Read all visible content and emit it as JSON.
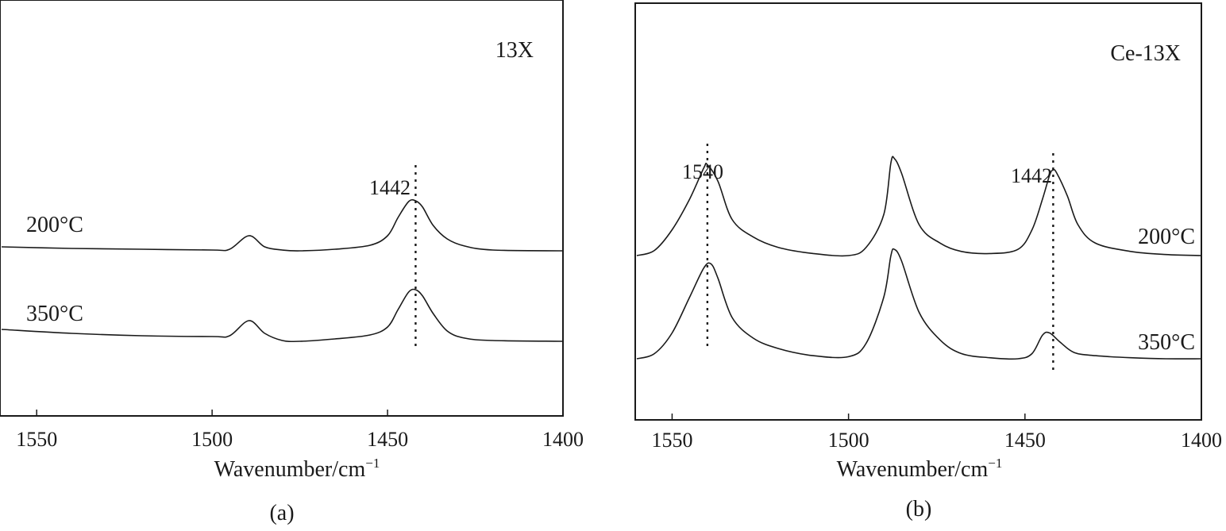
{
  "chart_data": [
    {
      "type": "line",
      "panel_label": "(a)",
      "sample_label": "13X",
      "xlabel": "Wavenumber/cm",
      "xlabel_sup": "−1",
      "xlim": [
        1560,
        1400
      ],
      "x_reversed": true,
      "ticks": [
        1550,
        1500,
        1450,
        1400
      ],
      "tick_labels": [
        "1550",
        "1500",
        "1450",
        "1400"
      ],
      "grid": false,
      "peak_markers": [
        {
          "x": 1442,
          "label": "1442"
        }
      ],
      "series": [
        {
          "name": "200°C",
          "x": [
            1560,
            1540,
            1520,
            1500,
            1495,
            1489.5,
            1485,
            1480,
            1475,
            1465,
            1455,
            1450,
            1447,
            1444,
            1442,
            1440,
            1437,
            1433,
            1428,
            1420,
            1400
          ],
          "y": [
            0.05,
            0.03,
            0.02,
            0.01,
            0.02,
            0.19,
            0.05,
            0.01,
            0.0,
            0.02,
            0.07,
            0.19,
            0.42,
            0.62,
            0.63,
            0.55,
            0.32,
            0.15,
            0.06,
            0.01,
            0.0
          ]
        },
        {
          "name": "350°C",
          "x": [
            1560,
            1540,
            1520,
            1500,
            1495,
            1489.5,
            1485,
            1480,
            1475,
            1465,
            1455,
            1450,
            1447,
            1444,
            1442,
            1440,
            1437,
            1433,
            1428,
            1420,
            1400
          ],
          "y": [
            0.15,
            0.1,
            0.07,
            0.06,
            0.07,
            0.26,
            0.1,
            0.01,
            0.0,
            0.03,
            0.08,
            0.18,
            0.4,
            0.62,
            0.65,
            0.57,
            0.35,
            0.13,
            0.04,
            0.01,
            0.0
          ]
        }
      ]
    },
    {
      "type": "line",
      "panel_label": "(b)",
      "sample_label": "Ce-13X",
      "xlabel": "Wavenumber/cm",
      "xlabel_sup": "−1",
      "xlim": [
        1560,
        1400
      ],
      "x_reversed": true,
      "ticks": [
        1550,
        1500,
        1450,
        1400
      ],
      "tick_labels": [
        "1550",
        "1500",
        "1450",
        "1400"
      ],
      "grid": false,
      "peak_markers": [
        {
          "x": 1540,
          "label": "1540"
        },
        {
          "x": 1442,
          "label": "1442"
        }
      ],
      "series": [
        {
          "name": "200°C",
          "x": [
            1560,
            1555,
            1550,
            1545,
            1541,
            1540,
            1537,
            1533,
            1527,
            1520,
            1510,
            1500,
            1495,
            1490,
            1488,
            1487,
            1485,
            1480,
            1474,
            1468,
            1460,
            1452,
            1448,
            1445,
            1443,
            1442,
            1441,
            1438,
            1435,
            1430,
            1420,
            1410,
            1400
          ],
          "y": [
            0.0,
            0.05,
            0.25,
            0.55,
            0.85,
            0.88,
            0.72,
            0.35,
            0.18,
            0.08,
            0.02,
            0.0,
            0.08,
            0.4,
            0.9,
            0.94,
            0.8,
            0.3,
            0.12,
            0.04,
            0.02,
            0.06,
            0.25,
            0.55,
            0.78,
            0.83,
            0.8,
            0.58,
            0.3,
            0.12,
            0.04,
            0.01,
            0.0
          ]
        },
        {
          "name": "350°C",
          "x": [
            1560,
            1555,
            1550,
            1545,
            1541,
            1539,
            1537,
            1533,
            1527,
            1520,
            1510,
            1500,
            1495,
            1490,
            1488,
            1487,
            1485,
            1480,
            1474,
            1468,
            1460,
            1452,
            1448,
            1445,
            1443,
            1440,
            1436,
            1430,
            1420,
            1410,
            1400
          ],
          "y": [
            0.0,
            0.05,
            0.25,
            0.6,
            0.88,
            0.92,
            0.78,
            0.4,
            0.2,
            0.1,
            0.03,
            0.02,
            0.15,
            0.6,
            1.0,
            1.06,
            0.95,
            0.45,
            0.18,
            0.05,
            0.01,
            0.0,
            0.05,
            0.23,
            0.25,
            0.16,
            0.06,
            0.03,
            0.01,
            0.0,
            0.0
          ]
        }
      ]
    }
  ]
}
